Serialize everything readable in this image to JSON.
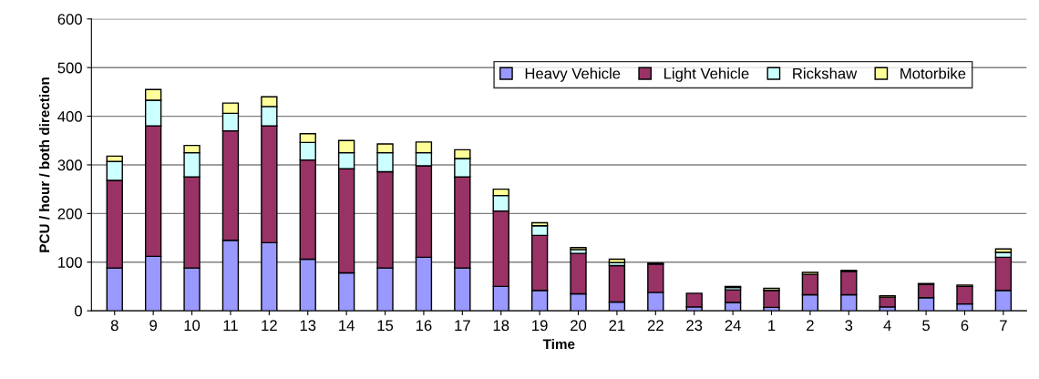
{
  "chart_data": {
    "type": "bar",
    "stacked": true,
    "xlabel": "Time",
    "ylabel": "PCU / hour / both direction",
    "categories": [
      "8",
      "9",
      "10",
      "11",
      "12",
      "13",
      "14",
      "15",
      "16",
      "17",
      "18",
      "19",
      "20",
      "21",
      "22",
      "23",
      "24",
      "1",
      "2",
      "3",
      "4",
      "5",
      "6",
      "7"
    ],
    "series": [
      {
        "name": "Heavy Vehicle",
        "color": "#9999ff",
        "values": [
          88,
          112,
          88,
          145,
          140,
          106,
          78,
          88,
          110,
          88,
          50,
          42,
          35,
          18,
          38,
          8,
          17,
          7,
          33,
          33,
          8,
          27,
          14,
          42
        ]
      },
      {
        "name": "Light Vehicle",
        "color": "#993366",
        "values": [
          180,
          268,
          187,
          225,
          240,
          204,
          214,
          198,
          188,
          187,
          155,
          113,
          83,
          75,
          58,
          28,
          26,
          35,
          42,
          48,
          20,
          27,
          36,
          68
        ]
      },
      {
        "name": "Rickshaw",
        "color": "#ccffff",
        "values": [
          39,
          53,
          50,
          36,
          40,
          36,
          33,
          39,
          27,
          38,
          32,
          20,
          8,
          6,
          null,
          null,
          5,
          null,
          null,
          null,
          null,
          null,
          null,
          10
        ]
      },
      {
        "name": "Motorbike",
        "color": "#ffff99",
        "values": [
          11,
          22,
          15,
          21,
          20,
          18,
          25,
          18,
          22,
          18,
          13,
          6,
          4,
          7,
          2,
          null,
          2,
          4,
          4,
          2,
          3,
          2,
          3,
          7
        ]
      }
    ],
    "ylim": [
      0,
      600
    ],
    "yticks": [
      0,
      100,
      200,
      300,
      400,
      500,
      600
    ],
    "grid": "y",
    "legend": "top right"
  }
}
